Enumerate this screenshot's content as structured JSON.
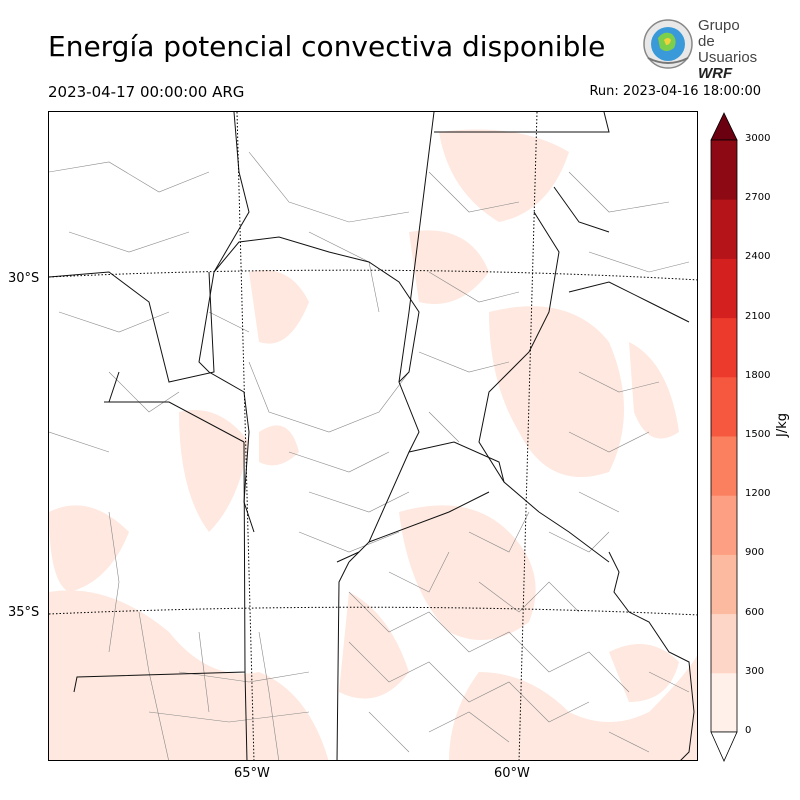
{
  "header": {
    "title": "Energía potencial convectiva disponible",
    "valid_time": "2023-04-17 00:00:00 ARG",
    "run_time": "Run: 2023-04-16 18:00:00"
  },
  "logo": {
    "line1": "Grupo de",
    "line2": "Usuarios",
    "line3": "WRF"
  },
  "map": {
    "latitude_labels": [
      "30°S",
      "35°S"
    ],
    "longitude_labels": [
      "65°W",
      "60°W"
    ]
  },
  "colorbar": {
    "unit": "J/kg",
    "ticks": [
      "0",
      "300",
      "600",
      "900",
      "1200",
      "1500",
      "1800",
      "2100",
      "2400",
      "2700",
      "3000"
    ],
    "colors": [
      "#fff0ea",
      "#fdd6c8",
      "#fcbba1",
      "#fc9f82",
      "#fb8060",
      "#f6583f",
      "#ec3a2c",
      "#d4201f",
      "#b51419",
      "#8d0a15",
      "#6b0010"
    ],
    "extend": "both"
  }
}
